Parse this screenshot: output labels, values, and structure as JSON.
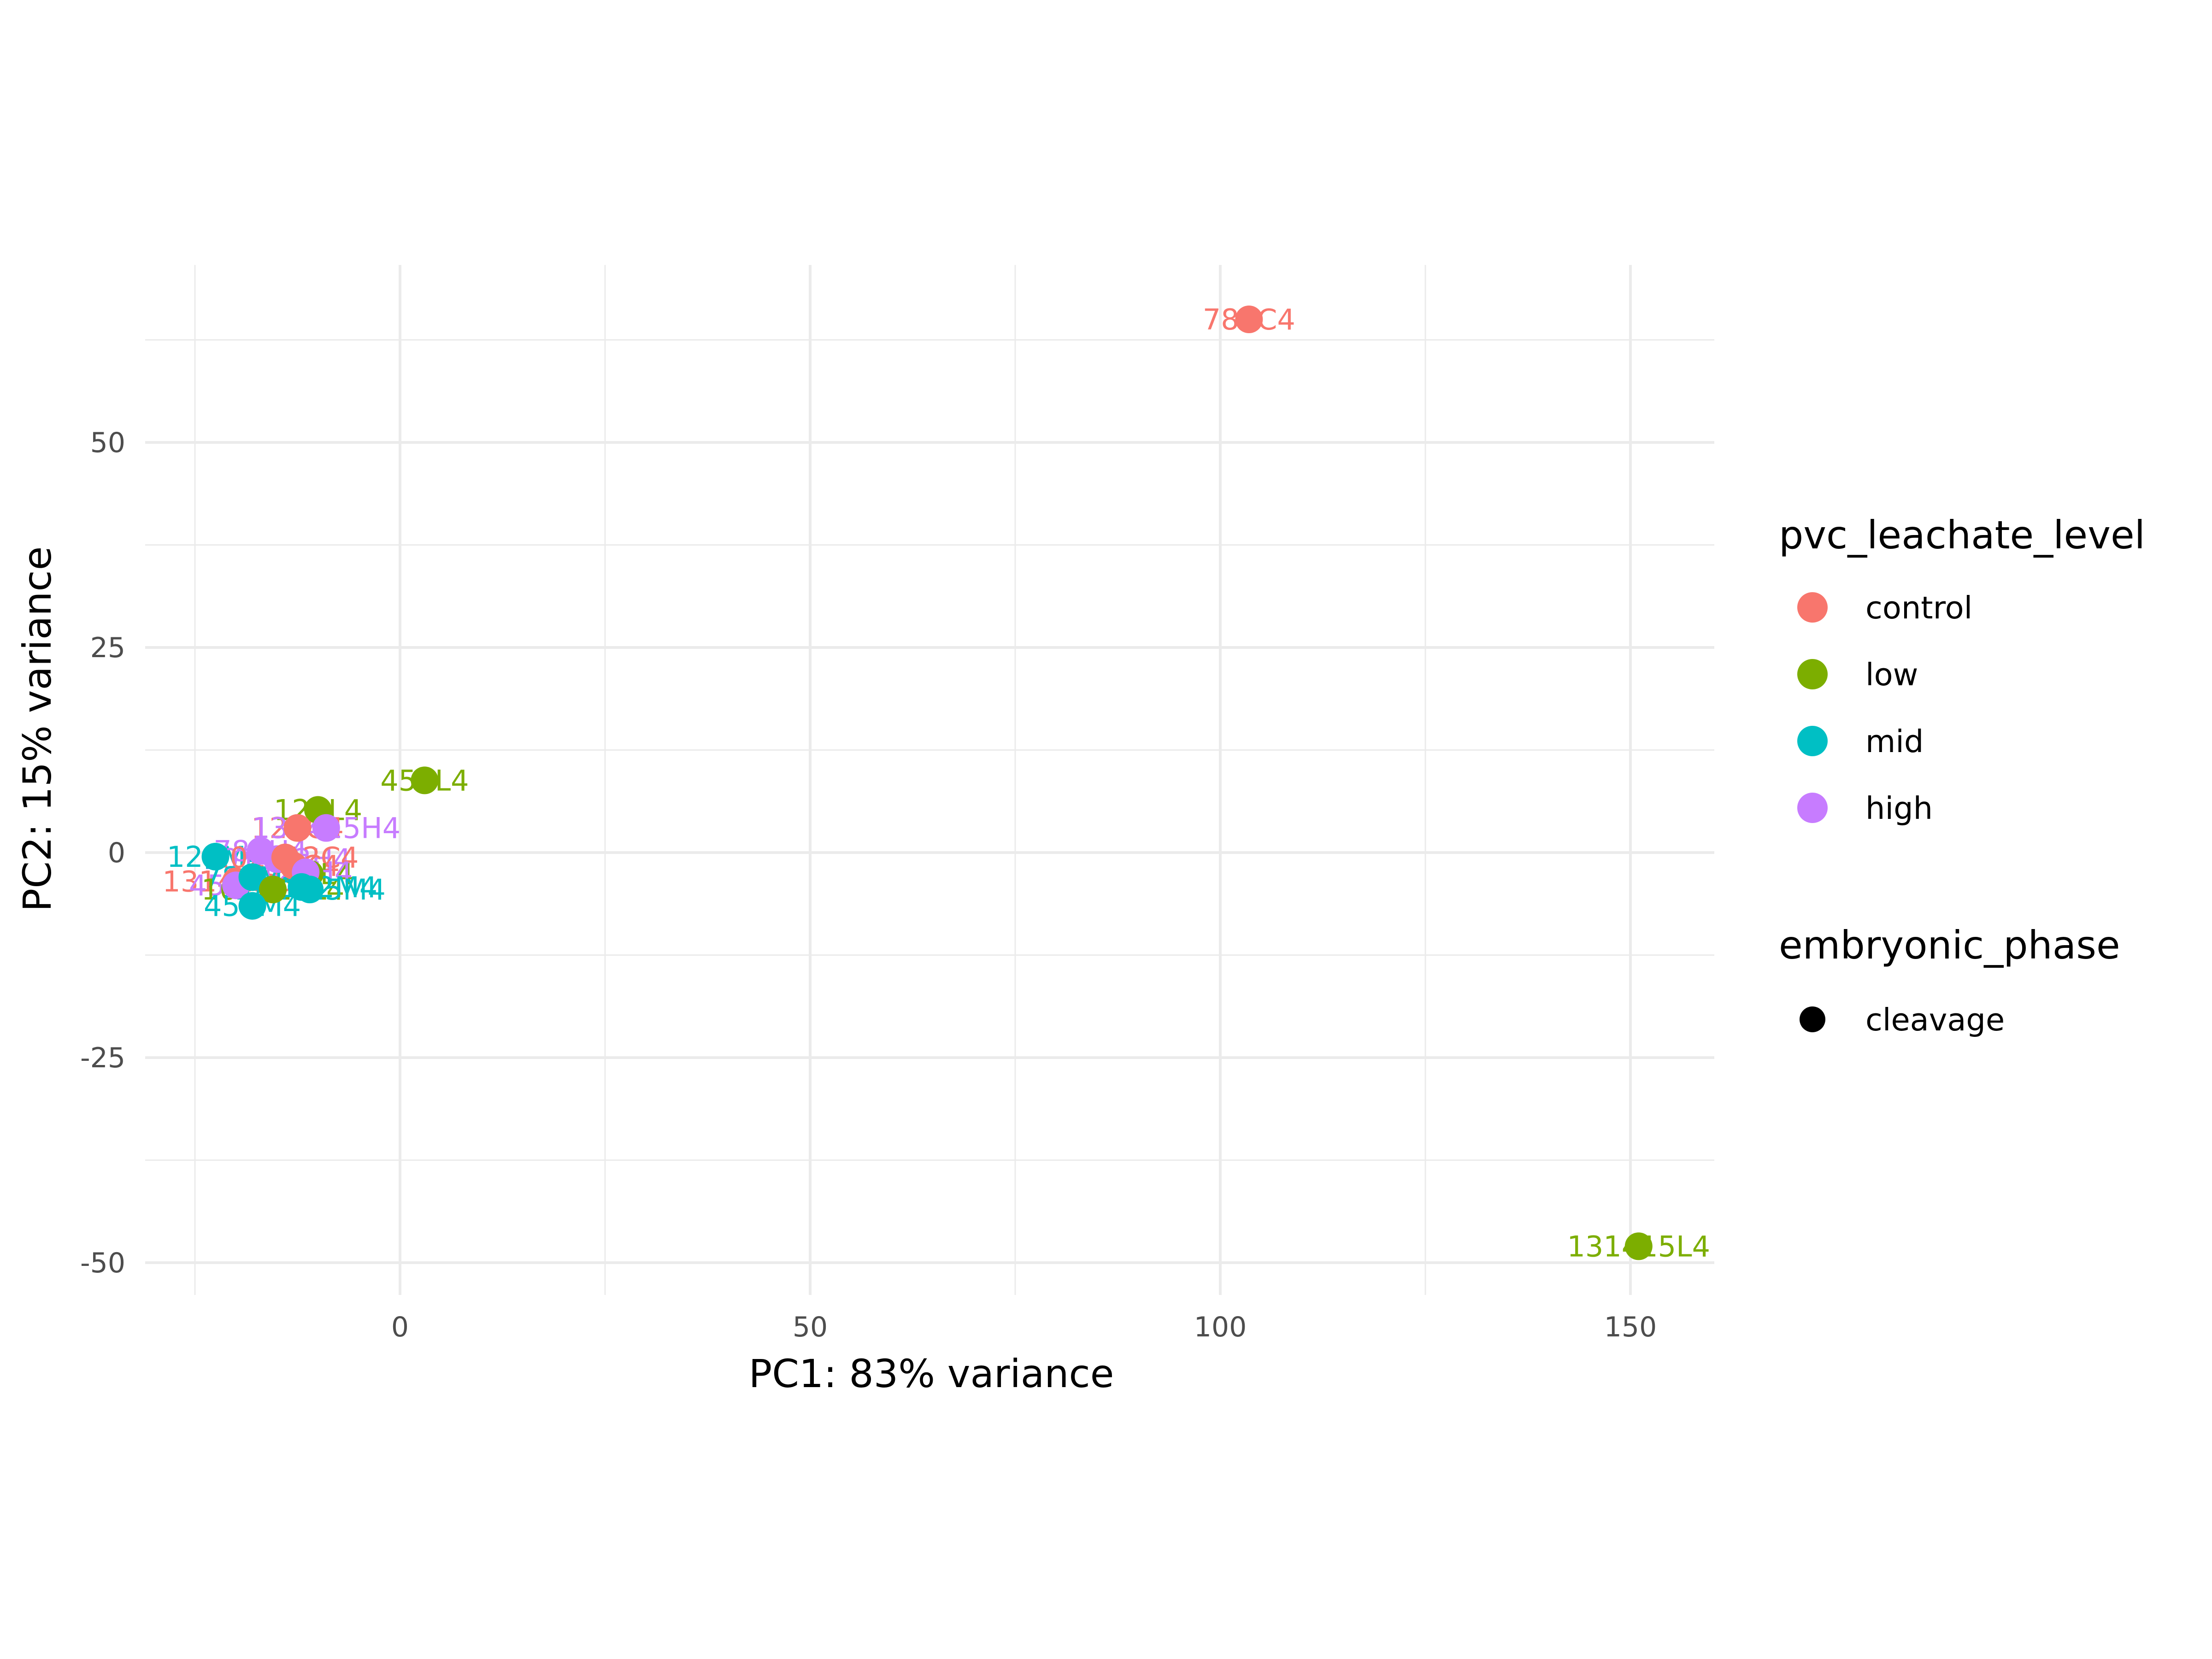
{
  "chart_data": {
    "type": "scatter",
    "xlabel": "PC1: 83% variance",
    "ylabel": "PC2: 15% variance",
    "xlim": [
      -31,
      160
    ],
    "ylim": [
      -54,
      70
    ],
    "x_ticks": [
      0,
      50,
      100,
      150
    ],
    "y_ticks": [
      -50,
      -25,
      0,
      25,
      50
    ],
    "x_tick_labels": [
      "0",
      "50",
      "100",
      "150"
    ],
    "y_tick_labels": [
      "-50",
      "-25",
      "0",
      "25",
      "50"
    ],
    "grid": true,
    "legend_placement": "right",
    "legends": [
      {
        "title": "pvc_leachate_level",
        "entries": [
          {
            "label": "control",
            "color": "#F8766D"
          },
          {
            "label": "low",
            "color": "#7CAE00"
          },
          {
            "label": "mid",
            "color": "#00BFC4"
          },
          {
            "label": "high",
            "color": "#C77CFF"
          }
        ]
      },
      {
        "title": "embryonic_phase",
        "entries": [
          {
            "label": "cleavage",
            "color": "#000000"
          }
        ]
      }
    ],
    "points": [
      {
        "x": 103.5,
        "y": 65.0,
        "group": "control",
        "label": "789C4"
      },
      {
        "x": 151.0,
        "y": -48.0,
        "group": "low",
        "label": "131415L4"
      },
      {
        "x": 3.0,
        "y": 8.8,
        "group": "low",
        "label": "456L4"
      },
      {
        "x": -10.0,
        "y": 5.2,
        "group": "low",
        "label": "123L4"
      },
      {
        "x": -12.5,
        "y": 3.0,
        "group": "control",
        "label": "123C4"
      },
      {
        "x": -9.0,
        "y": 3.0,
        "group": "high",
        "label": "131415H4"
      },
      {
        "x": -22.5,
        "y": -0.5,
        "group": "mid",
        "label": "123M4"
      },
      {
        "x": -17.0,
        "y": 0.2,
        "group": "high",
        "label": "789H4"
      },
      {
        "x": -15.0,
        "y": -0.8,
        "group": "high",
        "label": "101112H4"
      },
      {
        "x": -14.0,
        "y": -0.6,
        "group": "control",
        "label": "101112C4"
      },
      {
        "x": -13.0,
        "y": -1.6,
        "group": "control",
        "label": "456C4"
      },
      {
        "x": -11.0,
        "y": -2.6,
        "group": "low",
        "label": "789L4"
      },
      {
        "x": -11.5,
        "y": -2.4,
        "group": "high",
        "label": "123H4"
      },
      {
        "x": -20.0,
        "y": -3.5,
        "group": "control",
        "label": "131415C4"
      },
      {
        "x": -20.0,
        "y": -4.0,
        "group": "high",
        "label": "456H4"
      },
      {
        "x": -18.0,
        "y": -3.0,
        "group": "mid",
        "label": "789M4"
      },
      {
        "x": -15.5,
        "y": -4.5,
        "group": "low",
        "label": "101112L4"
      },
      {
        "x": -12.0,
        "y": -4.2,
        "group": "mid",
        "label": "101112M4"
      },
      {
        "x": -11.0,
        "y": -4.5,
        "group": "mid",
        "label": "131415M4"
      },
      {
        "x": -18.0,
        "y": -6.5,
        "group": "mid",
        "label": "456M4"
      }
    ]
  }
}
